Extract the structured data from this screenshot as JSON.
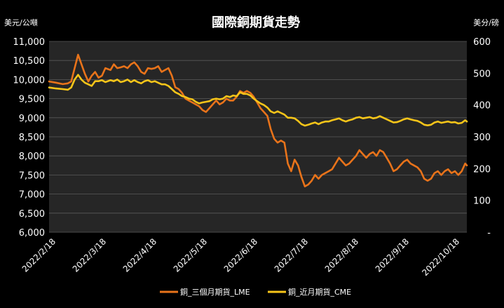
{
  "chart_data": {
    "type": "line",
    "title": "國際銅期貨走勢",
    "left_axis_unit": "美元/公噸",
    "right_axis_unit": "美分/磅",
    "x_ticks": [
      "2022/2/18",
      "2022/3/18",
      "2022/4/18",
      "2022/5/18",
      "2022/6/18",
      "2022/7/18",
      "2022/8/18",
      "2022/9/18",
      "2022/10/18"
    ],
    "x_range": [
      0,
      245
    ],
    "y_left": {
      "min": 6000,
      "max": 11000,
      "ticks": [
        6000,
        6500,
        7000,
        7500,
        8000,
        8500,
        9000,
        9500,
        10000,
        10500,
        11000
      ],
      "tick_labels": [
        "6,000",
        "6,500",
        "7,000",
        "7,500",
        "8,000",
        "8,500",
        "9,000",
        "9,500",
        "10,000",
        "10,500",
        "11,000"
      ]
    },
    "y_right": {
      "min": 0,
      "max": 600,
      "ticks": [
        0,
        100,
        200,
        300,
        400,
        500,
        600
      ],
      "tick_labels": [
        "-",
        "100",
        "200",
        "300",
        "400",
        "500",
        "600"
      ]
    },
    "grid": "horizontal",
    "legend_position": "bottom",
    "series": [
      {
        "name": "銅_三個月期貨_LME",
        "axis": "left",
        "color": "#E8731A",
        "points": [
          [
            0,
            9950
          ],
          [
            4,
            9920
          ],
          [
            8,
            9880
          ],
          [
            11,
            9900
          ],
          [
            13,
            9950
          ],
          [
            15,
            10300
          ],
          [
            17,
            10650
          ],
          [
            19,
            10400
          ],
          [
            21,
            10150
          ],
          [
            23,
            9950
          ],
          [
            25,
            10100
          ],
          [
            27,
            10200
          ],
          [
            29,
            10050
          ],
          [
            31,
            10100
          ],
          [
            33,
            10300
          ],
          [
            36,
            10250
          ],
          [
            38,
            10400
          ],
          [
            40,
            10300
          ],
          [
            42,
            10320
          ],
          [
            44,
            10350
          ],
          [
            46,
            10300
          ],
          [
            48,
            10400
          ],
          [
            50,
            10450
          ],
          [
            52,
            10350
          ],
          [
            54,
            10200
          ],
          [
            56,
            10150
          ],
          [
            58,
            10300
          ],
          [
            60,
            10280
          ],
          [
            62,
            10300
          ],
          [
            64,
            10350
          ],
          [
            66,
            10200
          ],
          [
            68,
            10250
          ],
          [
            70,
            10300
          ],
          [
            72,
            10100
          ],
          [
            74,
            9800
          ],
          [
            76,
            9750
          ],
          [
            78,
            9650
          ],
          [
            80,
            9500
          ],
          [
            82,
            9450
          ],
          [
            84,
            9400
          ],
          [
            86,
            9350
          ],
          [
            88,
            9300
          ],
          [
            90,
            9200
          ],
          [
            92,
            9150
          ],
          [
            94,
            9250
          ],
          [
            96,
            9350
          ],
          [
            98,
            9450
          ],
          [
            100,
            9350
          ],
          [
            102,
            9400
          ],
          [
            104,
            9500
          ],
          [
            106,
            9450
          ],
          [
            108,
            9450
          ],
          [
            110,
            9550
          ],
          [
            112,
            9700
          ],
          [
            114,
            9650
          ],
          [
            116,
            9700
          ],
          [
            118,
            9650
          ],
          [
            120,
            9550
          ],
          [
            122,
            9400
          ],
          [
            124,
            9250
          ],
          [
            126,
            9150
          ],
          [
            128,
            9050
          ],
          [
            130,
            8700
          ],
          [
            132,
            8450
          ],
          [
            134,
            8350
          ],
          [
            136,
            8400
          ],
          [
            138,
            8350
          ],
          [
            140,
            7800
          ],
          [
            142,
            7600
          ],
          [
            144,
            7900
          ],
          [
            146,
            7750
          ],
          [
            148,
            7450
          ],
          [
            150,
            7200
          ],
          [
            152,
            7250
          ],
          [
            154,
            7350
          ],
          [
            156,
            7500
          ],
          [
            158,
            7400
          ],
          [
            160,
            7500
          ],
          [
            162,
            7550
          ],
          [
            164,
            7600
          ],
          [
            166,
            7650
          ],
          [
            168,
            7800
          ],
          [
            170,
            7950
          ],
          [
            172,
            7850
          ],
          [
            174,
            7750
          ],
          [
            176,
            7800
          ],
          [
            178,
            7900
          ],
          [
            180,
            8000
          ],
          [
            182,
            8150
          ],
          [
            184,
            8050
          ],
          [
            186,
            7950
          ],
          [
            188,
            8050
          ],
          [
            190,
            8100
          ],
          [
            192,
            8000
          ],
          [
            194,
            8150
          ],
          [
            196,
            8100
          ],
          [
            198,
            7950
          ],
          [
            200,
            7800
          ],
          [
            202,
            7600
          ],
          [
            204,
            7650
          ],
          [
            206,
            7750
          ],
          [
            208,
            7850
          ],
          [
            210,
            7900
          ],
          [
            212,
            7800
          ],
          [
            214,
            7750
          ],
          [
            216,
            7700
          ],
          [
            218,
            7600
          ],
          [
            220,
            7400
          ],
          [
            222,
            7350
          ],
          [
            224,
            7400
          ],
          [
            226,
            7550
          ],
          [
            228,
            7600
          ],
          [
            230,
            7500
          ],
          [
            232,
            7600
          ],
          [
            234,
            7650
          ],
          [
            236,
            7550
          ],
          [
            238,
            7600
          ],
          [
            240,
            7500
          ],
          [
            242,
            7600
          ],
          [
            244,
            7800
          ],
          [
            245,
            7750
          ]
        ]
      },
      {
        "name": "銅_近月期貨_CME",
        "axis": "right",
        "color": "#F7C519",
        "points": [
          [
            0,
            455
          ],
          [
            4,
            452
          ],
          [
            8,
            450
          ],
          [
            11,
            448
          ],
          [
            13,
            455
          ],
          [
            15,
            480
          ],
          [
            17,
            495
          ],
          [
            19,
            480
          ],
          [
            21,
            470
          ],
          [
            23,
            465
          ],
          [
            25,
            460
          ],
          [
            27,
            475
          ],
          [
            29,
            475
          ],
          [
            31,
            478
          ],
          [
            33,
            472
          ],
          [
            36,
            478
          ],
          [
            38,
            475
          ],
          [
            40,
            480
          ],
          [
            42,
            472
          ],
          [
            44,
            475
          ],
          [
            46,
            480
          ],
          [
            48,
            472
          ],
          [
            50,
            478
          ],
          [
            52,
            472
          ],
          [
            54,
            468
          ],
          [
            56,
            475
          ],
          [
            58,
            478
          ],
          [
            60,
            472
          ],
          [
            62,
            475
          ],
          [
            64,
            470
          ],
          [
            66,
            465
          ],
          [
            68,
            465
          ],
          [
            70,
            460
          ],
          [
            72,
            450
          ],
          [
            74,
            440
          ],
          [
            76,
            435
          ],
          [
            78,
            428
          ],
          [
            80,
            425
          ],
          [
            82,
            420
          ],
          [
            84,
            418
          ],
          [
            86,
            410
          ],
          [
            88,
            405
          ],
          [
            90,
            408
          ],
          [
            92,
            410
          ],
          [
            94,
            412
          ],
          [
            96,
            418
          ],
          [
            98,
            420
          ],
          [
            100,
            418
          ],
          [
            102,
            420
          ],
          [
            104,
            428
          ],
          [
            106,
            425
          ],
          [
            108,
            430
          ],
          [
            110,
            428
          ],
          [
            112,
            440
          ],
          [
            114,
            435
          ],
          [
            116,
            435
          ],
          [
            118,
            430
          ],
          [
            120,
            420
          ],
          [
            122,
            412
          ],
          [
            124,
            405
          ],
          [
            126,
            400
          ],
          [
            128,
            392
          ],
          [
            130,
            380
          ],
          [
            132,
            375
          ],
          [
            134,
            380
          ],
          [
            136,
            375
          ],
          [
            138,
            370
          ],
          [
            140,
            360
          ],
          [
            142,
            360
          ],
          [
            144,
            358
          ],
          [
            146,
            350
          ],
          [
            148,
            340
          ],
          [
            150,
            335
          ],
          [
            152,
            338
          ],
          [
            154,
            342
          ],
          [
            156,
            345
          ],
          [
            158,
            340
          ],
          [
            160,
            345
          ],
          [
            162,
            348
          ],
          [
            164,
            348
          ],
          [
            166,
            352
          ],
          [
            168,
            355
          ],
          [
            170,
            358
          ],
          [
            172,
            352
          ],
          [
            174,
            348
          ],
          [
            176,
            352
          ],
          [
            178,
            355
          ],
          [
            180,
            360
          ],
          [
            182,
            362
          ],
          [
            184,
            358
          ],
          [
            186,
            360
          ],
          [
            188,
            362
          ],
          [
            190,
            358
          ],
          [
            192,
            360
          ],
          [
            194,
            365
          ],
          [
            196,
            360
          ],
          [
            198,
            355
          ],
          [
            200,
            350
          ],
          [
            202,
            345
          ],
          [
            204,
            346
          ],
          [
            206,
            350
          ],
          [
            208,
            355
          ],
          [
            210,
            358
          ],
          [
            212,
            355
          ],
          [
            214,
            352
          ],
          [
            216,
            350
          ],
          [
            218,
            345
          ],
          [
            220,
            338
          ],
          [
            222,
            336
          ],
          [
            224,
            338
          ],
          [
            226,
            345
          ],
          [
            228,
            348
          ],
          [
            230,
            344
          ],
          [
            232,
            346
          ],
          [
            234,
            348
          ],
          [
            236,
            345
          ],
          [
            238,
            346
          ],
          [
            240,
            342
          ],
          [
            242,
            344
          ],
          [
            244,
            352
          ],
          [
            245,
            348
          ]
        ]
      }
    ]
  }
}
